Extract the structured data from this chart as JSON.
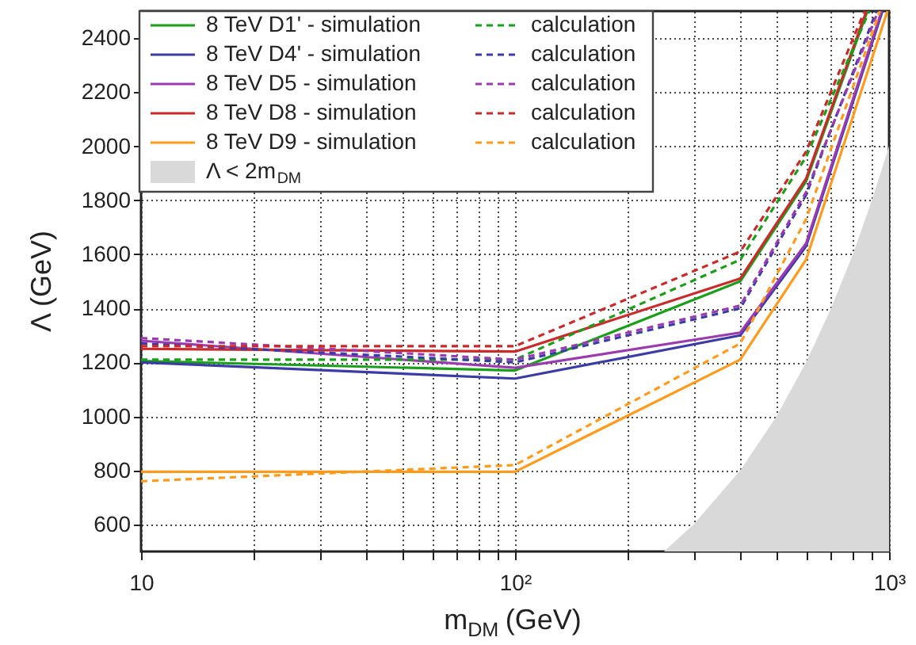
{
  "chart_data": {
    "type": "line",
    "xlabel": "m$_{DM}$ (GeV)",
    "ylabel": "Λ (GeV)",
    "log": "x",
    "grid": true,
    "legend": "top left",
    "xlim": [
      10,
      1000
    ],
    "ylim": [
      500,
      2500
    ],
    "xticks": [
      {
        "value": 10,
        "label": "10"
      },
      {
        "value": 20,
        "label": null
      },
      {
        "value": 30,
        "label": null
      },
      {
        "value": 40,
        "label": null
      },
      {
        "value": 50,
        "label": null
      },
      {
        "value": 60,
        "label": null
      },
      {
        "value": 70,
        "label": null
      },
      {
        "value": 80,
        "label": null
      },
      {
        "value": 90,
        "label": null
      },
      {
        "value": 100,
        "label": "10²"
      },
      {
        "value": 200,
        "label": null
      },
      {
        "value": 300,
        "label": null
      },
      {
        "value": 400,
        "label": null
      },
      {
        "value": 500,
        "label": null
      },
      {
        "value": 600,
        "label": null
      },
      {
        "value": 700,
        "label": null
      },
      {
        "value": 800,
        "label": null
      },
      {
        "value": 900,
        "label": null
      },
      {
        "value": 1000,
        "label": "10³"
      }
    ],
    "yticks": [
      600,
      800,
      1000,
      1200,
      1400,
      1600,
      1800,
      2000,
      2200,
      2400
    ],
    "series": [
      {
        "name": "Λ < 2m$_{DM}$",
        "type": "area",
        "color": "#d9d9d9",
        "x": [
          250,
          300,
          400,
          500,
          600,
          700,
          800,
          900,
          1000
        ],
        "values": [
          500,
          600,
          800,
          1000,
          1200,
          1400,
          1600,
          1800,
          2000
        ]
      },
      {
        "name": "8 TeV D1' - simulation",
        "color": "#1a9f1a",
        "line_style": "solid",
        "x": [
          10,
          100,
          400,
          600,
          875
        ],
        "values": [
          1205,
          1170,
          1500,
          1870,
          2500
        ]
      },
      {
        "name": "8 TeV D4' - simulation",
        "color": "#3b3ba8",
        "line_style": "solid",
        "x": [
          10,
          100,
          400,
          600,
          960
        ],
        "values": [
          1200,
          1140,
          1300,
          1630,
          2500
        ]
      },
      {
        "name": "8 TeV D5 - simulation",
        "color": "#9b3bb0",
        "line_style": "solid",
        "x": [
          10,
          100,
          400,
          600,
          955
        ],
        "values": [
          1280,
          1180,
          1310,
          1640,
          2500
        ]
      },
      {
        "name": "8 TeV D8 - simulation",
        "color": "#cc2a2a",
        "line_style": "solid",
        "x": [
          10,
          100,
          400,
          600,
          870
        ],
        "values": [
          1250,
          1240,
          1510,
          1880,
          2500
        ]
      },
      {
        "name": "8 TeV D9 - simulation",
        "color": "#ff9a1a",
        "line_style": "solid",
        "x": [
          10,
          100,
          400,
          600,
          990
        ],
        "values": [
          795,
          795,
          1210,
          1580,
          2500
        ]
      },
      {
        "name": "calculation",
        "color": "#1a9f1a",
        "line_style": "dashed",
        "x": [
          10,
          100,
          400,
          600,
          885
        ],
        "values": [
          1210,
          1210,
          1580,
          1960,
          2500
        ]
      },
      {
        "name": "calculation",
        "color": "#3b3ba8",
        "line_style": "dashed",
        "x": [
          10,
          100,
          400,
          600,
          925
        ],
        "values": [
          1270,
          1200,
          1400,
          1820,
          2500
        ]
      },
      {
        "name": "calculation",
        "color": "#9b3bb0",
        "line_style": "dashed",
        "x": [
          10,
          100,
          400,
          600,
          935
        ],
        "values": [
          1290,
          1210,
          1410,
          1830,
          2500
        ]
      },
      {
        "name": "calculation",
        "color": "#cc2a2a",
        "line_style": "dashed",
        "x": [
          10,
          100,
          400,
          600,
          860
        ],
        "values": [
          1260,
          1260,
          1610,
          1980,
          2500
        ]
      },
      {
        "name": "calculation",
        "color": "#ff9a1a",
        "line_style": "dashed",
        "x": [
          10,
          100,
          400,
          600,
          945
        ],
        "values": [
          760,
          820,
          1270,
          1730,
          2500
        ]
      }
    ]
  }
}
